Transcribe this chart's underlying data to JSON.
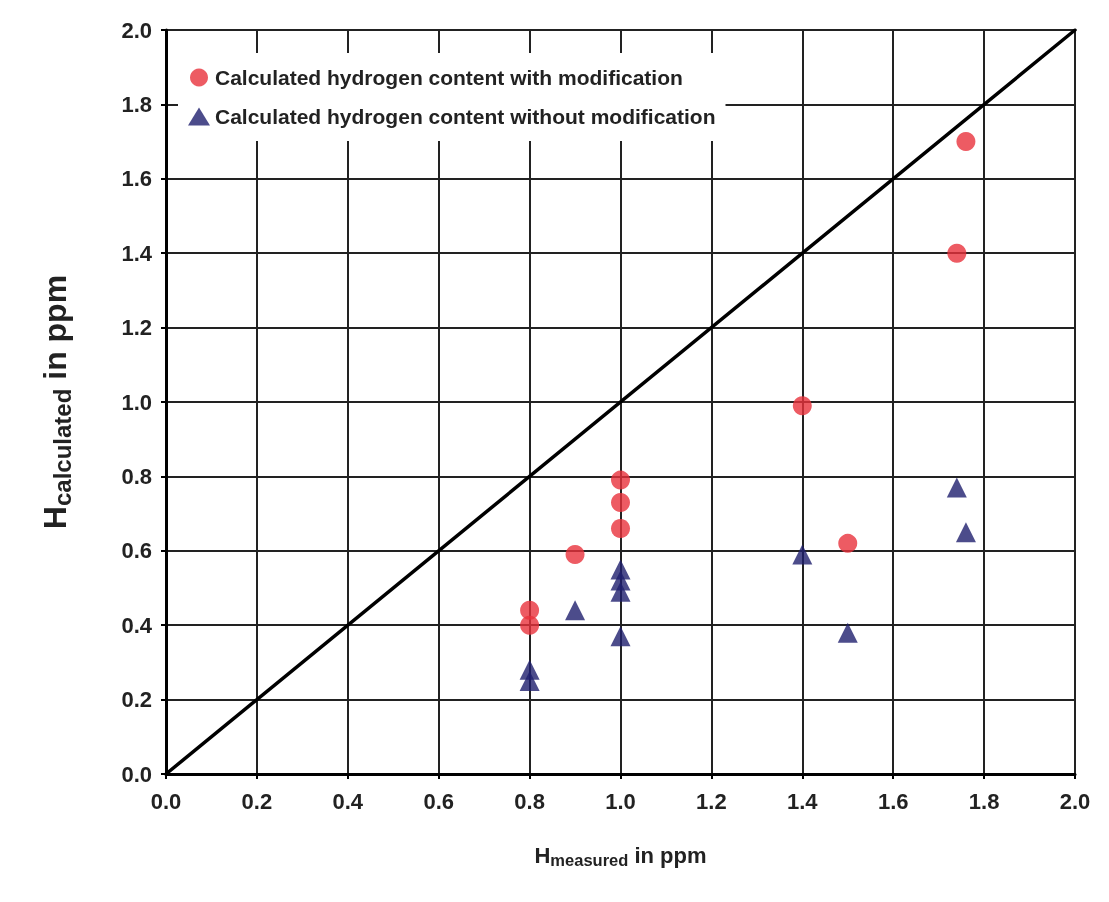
{
  "chart_data": {
    "type": "scatter",
    "xlabel": "H$_{measured}$ in ppm",
    "ylabel": "H$_{calculated}$ in ppm",
    "xlim": [
      0,
      2
    ],
    "ylim": [
      0,
      2
    ],
    "xticks": [
      {
        "value": 0,
        "label": "0.0"
      },
      0.2,
      0.4,
      0.6,
      0.8,
      {
        "value": 1,
        "label": "1.0"
      },
      1.2,
      1.4,
      1.6,
      1.8,
      {
        "value": 2,
        "label": "2.0"
      }
    ],
    "yticks": [
      {
        "value": 0,
        "label": "0.0"
      },
      0.2,
      0.4,
      0.6,
      0.8,
      {
        "value": 1,
        "label": "1.0"
      },
      1.2,
      1.4,
      1.6,
      1.8,
      {
        "value": 2,
        "label": "2.0"
      }
    ],
    "grid": true,
    "legend": "top left",
    "series": [
      {
        "name": "Calculated hydrogen content with modification",
        "color": "#e8323c",
        "marker": "circle",
        "x": [
          0.8,
          0.8,
          0.9,
          1.0,
          1.0,
          1.0,
          1.4,
          1.5,
          1.74,
          1.76
        ],
        "values": [
          0.44,
          0.4,
          0.59,
          0.79,
          0.73,
          0.66,
          0.99,
          0.62,
          1.4,
          1.7
        ]
      },
      {
        "name": "Calculated hydrogen content without modification",
        "color": "#1f1f6e",
        "marker": "triangle",
        "x": [
          0.8,
          0.8,
          0.9,
          1.0,
          1.0,
          1.0,
          1.0,
          1.4,
          1.5,
          1.74,
          1.76
        ],
        "values": [
          0.28,
          0.25,
          0.44,
          0.55,
          0.52,
          0.49,
          0.37,
          0.59,
          0.38,
          0.77,
          0.65
        ]
      },
      {
        "type": "line",
        "color": "#000000",
        "marker": "none",
        "x": [
          0,
          2
        ],
        "values": [
          0,
          2
        ]
      }
    ]
  }
}
